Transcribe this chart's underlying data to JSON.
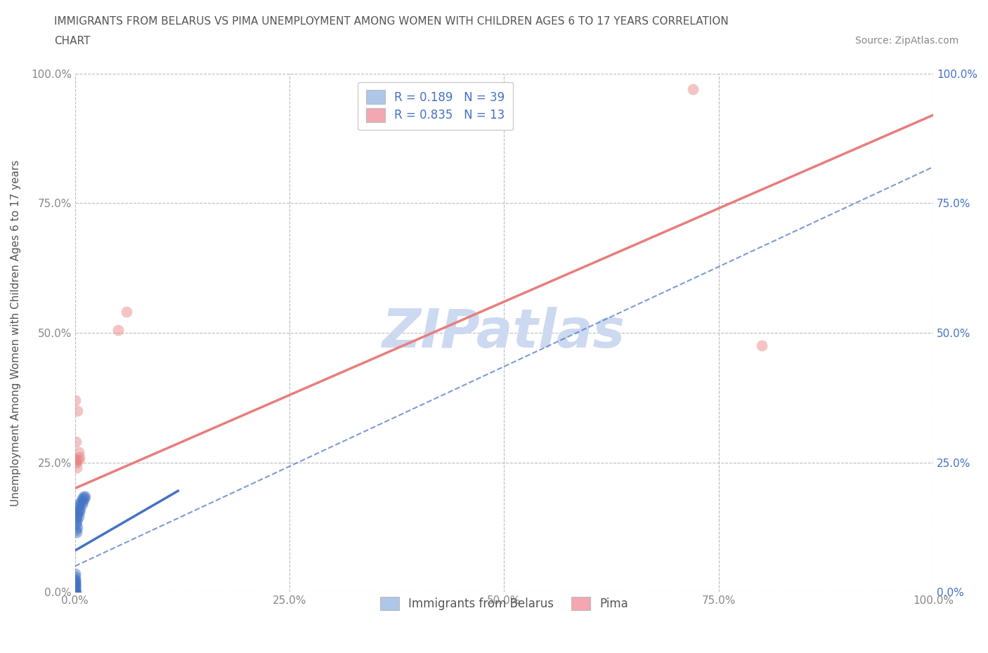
{
  "title_line1": "IMMIGRANTS FROM BELARUS VS PIMA UNEMPLOYMENT AMONG WOMEN WITH CHILDREN AGES 6 TO 17 YEARS CORRELATION",
  "title_line2": "CHART",
  "source": "Source: ZipAtlas.com",
  "ylabel": "Unemployment Among Women with Children Ages 6 to 17 years",
  "watermark": "ZIPatlas",
  "legend_box_entries": [
    {
      "label": "R = 0.189   N = 39",
      "color": "#aec6e8"
    },
    {
      "label": "R = 0.835   N = 13",
      "color": "#f4a7b0"
    }
  ],
  "bottom_legend": [
    {
      "label": "Immigrants from Belarus",
      "color": "#aec6e8"
    },
    {
      "label": "Pima",
      "color": "#f4a7b0"
    }
  ],
  "blue_scatter": [
    [
      0.0,
      0.0
    ],
    [
      0.0,
      0.0
    ],
    [
      0.0,
      0.0
    ],
    [
      0.0,
      0.005
    ],
    [
      0.0,
      0.005
    ],
    [
      0.0,
      0.01
    ],
    [
      0.0,
      0.01
    ],
    [
      0.0,
      0.012
    ],
    [
      0.0,
      0.015
    ],
    [
      0.0,
      0.015
    ],
    [
      0.0,
      0.018
    ],
    [
      0.0,
      0.02
    ],
    [
      0.0,
      0.022
    ],
    [
      0.0,
      0.025
    ],
    [
      0.0,
      0.03
    ],
    [
      0.0,
      0.035
    ],
    [
      0.002,
      0.14
    ],
    [
      0.002,
      0.145
    ],
    [
      0.003,
      0.15
    ],
    [
      0.003,
      0.155
    ],
    [
      0.004,
      0.16
    ],
    [
      0.004,
      0.165
    ],
    [
      0.005,
      0.155
    ],
    [
      0.005,
      0.17
    ],
    [
      0.006,
      0.16
    ],
    [
      0.007,
      0.175
    ],
    [
      0.008,
      0.17
    ],
    [
      0.008,
      0.18
    ],
    [
      0.009,
      0.175
    ],
    [
      0.01,
      0.185
    ],
    [
      0.011,
      0.18
    ],
    [
      0.012,
      0.185
    ],
    [
      0.001,
      0.13
    ],
    [
      0.002,
      0.135
    ],
    [
      0.003,
      0.125
    ],
    [
      0.004,
      0.145
    ],
    [
      0.001,
      0.12
    ],
    [
      0.002,
      0.115
    ],
    [
      0.001,
      0.0
    ]
  ],
  "pink_scatter": [
    [
      0.0,
      0.37
    ],
    [
      0.001,
      0.29
    ],
    [
      0.001,
      0.255
    ],
    [
      0.001,
      0.25
    ],
    [
      0.002,
      0.24
    ],
    [
      0.003,
      0.35
    ],
    [
      0.004,
      0.27
    ],
    [
      0.004,
      0.255
    ],
    [
      0.005,
      0.26
    ],
    [
      0.05,
      0.505
    ],
    [
      0.06,
      0.54
    ],
    [
      0.72,
      0.97
    ],
    [
      0.8,
      0.475
    ]
  ],
  "blue_line": {
    "x0": 0.0,
    "y0": 0.08,
    "x1": 0.12,
    "y1": 0.195
  },
  "pink_line": {
    "x0": 0.0,
    "y0": 0.2,
    "x1": 1.0,
    "y1": 0.92
  },
  "blue_dash_line": {
    "x0": 0.0,
    "y0": 0.05,
    "x1": 1.0,
    "y1": 0.82
  },
  "xlim": [
    0.0,
    1.0
  ],
  "ylim": [
    0.0,
    1.0
  ],
  "xticks": [
    0.0,
    0.25,
    0.5,
    0.75,
    1.0
  ],
  "yticks": [
    0.0,
    0.25,
    0.5,
    0.75,
    1.0
  ],
  "xtick_labels": [
    "0.0%",
    "25.0%",
    "50.0%",
    "75.0%",
    "100.0%"
  ],
  "ytick_labels": [
    "0.0%",
    "25.0%",
    "50.0%",
    "75.0%",
    "100.0%"
  ],
  "right_ytick_labels": [
    "0.0%",
    "25.0%",
    "50.0%",
    "75.0%",
    "100.0%"
  ],
  "scatter_size": 130,
  "scatter_alpha": 0.45,
  "title_color": "#555555",
  "axis_color": "#555555",
  "tick_color": "#888888",
  "right_tick_color": "#4472c4",
  "grid_color": "#bbbbbb",
  "blue_scatter_color": "#4472c4",
  "pink_scatter_color": "#e87d7d",
  "blue_line_color": "#4472c4",
  "pink_line_color": "#e87d7d",
  "blue_dash_color": "#4472c4",
  "watermark_color": "#ccd9f0",
  "watermark_fontsize": 55
}
